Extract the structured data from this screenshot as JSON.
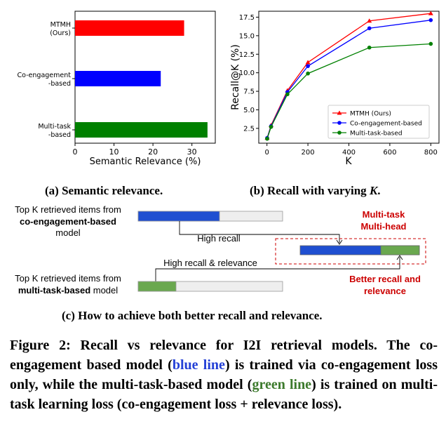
{
  "chart_data": [
    {
      "type": "bar",
      "orientation": "horizontal",
      "categories": [
        "MTMH\n(Ours)",
        "Co-engagement\n-based",
        "Multi-task\n-based"
      ],
      "values": [
        28,
        22,
        34
      ],
      "colors": [
        "#ff0000",
        "#0000ff",
        "#008000"
      ],
      "xlabel": "Semantic Relevance (%)",
      "ylabel": "",
      "xlim": [
        0,
        36
      ],
      "xticks": [
        0,
        10,
        20,
        30
      ],
      "grid": false
    },
    {
      "type": "line",
      "x": [
        1,
        20,
        100,
        200,
        500,
        800
      ],
      "xlabel": "K",
      "ylabel": "Recall@K (%)",
      "xlim": [
        -40,
        840
      ],
      "ylim": [
        0.5,
        18.3
      ],
      "xticks": [
        0,
        200,
        400,
        600,
        800
      ],
      "yticks": [
        2.5,
        5.0,
        7.5,
        10.0,
        12.5,
        15.0,
        17.5
      ],
      "legend_position": "lower-right",
      "grid": false,
      "series": [
        {
          "name": "MTMH (Ours)",
          "color": "#ff0000",
          "marker": "triangle",
          "values": [
            1.2,
            2.9,
            7.6,
            11.4,
            17.0,
            18.0
          ]
        },
        {
          "name": "Co-engagement-based",
          "color": "#0000ff",
          "marker": "circle",
          "values": [
            1.2,
            2.8,
            7.4,
            10.9,
            16.0,
            17.1
          ]
        },
        {
          "name": "Multi-task-based",
          "color": "#008000",
          "marker": "circle",
          "values": [
            1.1,
            2.7,
            7.1,
            9.9,
            13.4,
            13.9
          ]
        }
      ]
    }
  ],
  "subcaptions": {
    "a": "(a) Semantic relevance.",
    "b_prefix": "(b) Recall with varying ",
    "b_var": "K",
    "b_suffix": ".",
    "c": "(c) How to achieve both better recall and relevance."
  },
  "diagram": {
    "top_label_1": "Top K retrieved items from",
    "top_label_2": "co-engagement-based",
    "top_label_3": "model",
    "bottom_label_1": "Top K retrieved items from",
    "bottom_label_2": "multi-task-based",
    "bottom_label_3": " model",
    "high_recall": "High recall",
    "high_recall_relevance": "High recall & relevance",
    "mtmh_line1": "Multi-task",
    "mtmh_line2": "Multi-head",
    "better_line1": "Better recall and",
    "better_line2": "relevance",
    "colors": {
      "blue": "#1f4fd1",
      "green": "#6aa84f",
      "gray": "#eeeeee",
      "red": "#cc0000"
    }
  },
  "caption": {
    "part1": "Figure 2: Recall vs relevance for I2I retrieval models. The co-engagement based model (",
    "blue": "blue line",
    "part2": ") is trained via co-engagement loss only, while the multi-task-based model (",
    "green": "green line",
    "part3": ") is trained on multi-task learning loss (co-engagement loss + relevance loss)."
  }
}
